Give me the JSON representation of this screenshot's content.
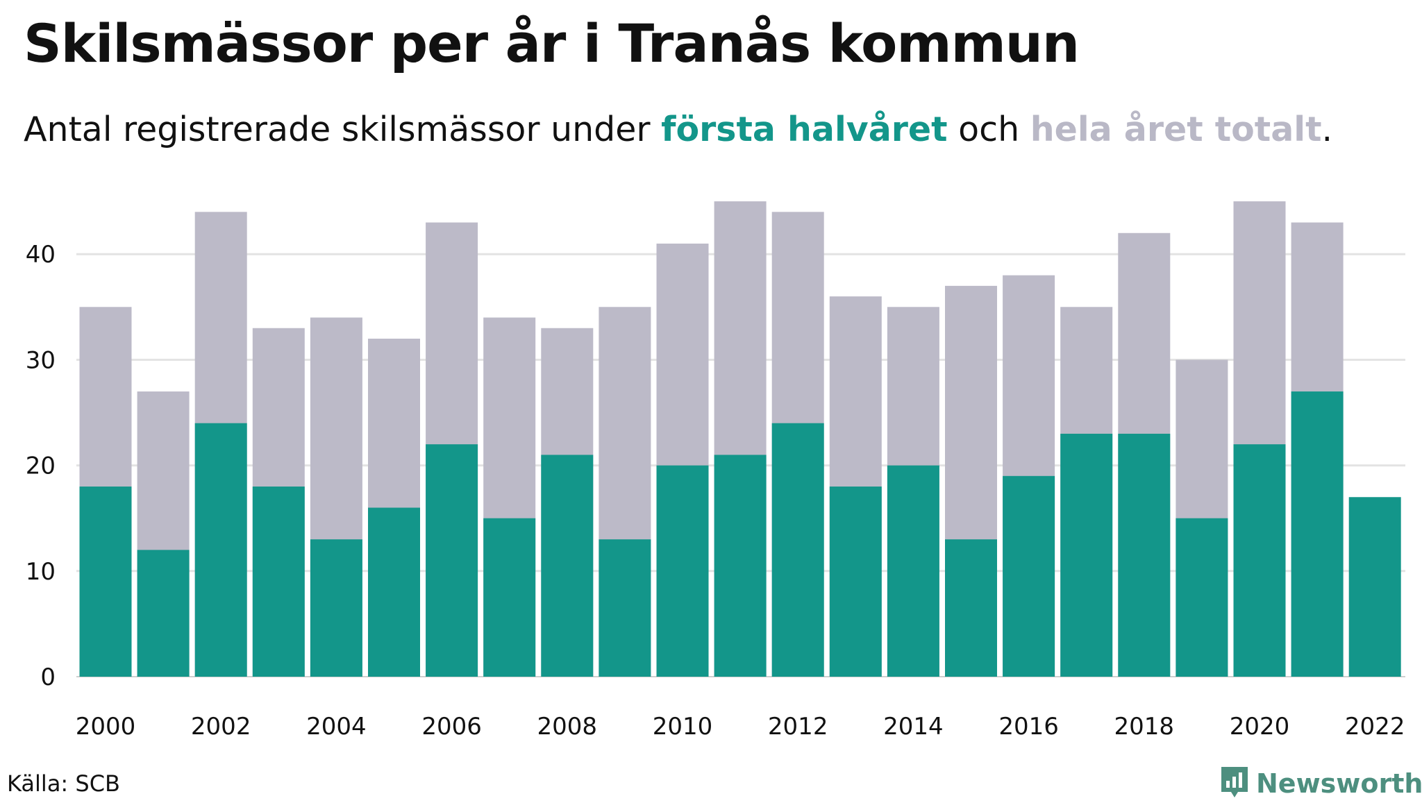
{
  "header": {
    "title": "Skilsmässor per år i Tranås kommun",
    "subtitle_prefix": "Antal registrerade skilsmässor under ",
    "subtitle_first": "första halvåret",
    "subtitle_mid": " och ",
    "subtitle_whole": "hela året totalt",
    "subtitle_end": "."
  },
  "footer": {
    "source": "Källa: SCB",
    "brand": "Newsworthy",
    "brand_icon": "newsworthy-logo-icon"
  },
  "colors": {
    "first_half": "#13968a",
    "whole_year": "#bcbac8",
    "grid": "#e3e3e3",
    "brand": "#4d8f7f"
  },
  "chart_data": {
    "type": "bar",
    "categories": [
      "2000",
      "2001",
      "2002",
      "2003",
      "2004",
      "2005",
      "2006",
      "2007",
      "2008",
      "2009",
      "2010",
      "2011",
      "2012",
      "2013",
      "2014",
      "2015",
      "2016",
      "2017",
      "2018",
      "2019",
      "2020",
      "2021",
      "2022"
    ],
    "series": [
      {
        "name": "första halvåret",
        "values": [
          18,
          12,
          24,
          18,
          13,
          16,
          22,
          15,
          21,
          13,
          20,
          21,
          24,
          18,
          20,
          13,
          19,
          23,
          23,
          15,
          22,
          27,
          17
        ]
      },
      {
        "name": "hela året totalt",
        "values": [
          35,
          27,
          44,
          33,
          34,
          32,
          43,
          34,
          33,
          35,
          41,
          45,
          44,
          36,
          35,
          37,
          38,
          35,
          42,
          30,
          45,
          43,
          null
        ]
      }
    ],
    "x_tick_labels": [
      "2000",
      "2002",
      "2004",
      "2006",
      "2008",
      "2010",
      "2012",
      "2014",
      "2016",
      "2018",
      "2020",
      "2022"
    ],
    "y_ticks": [
      0,
      10,
      20,
      30,
      40
    ],
    "ylim": [
      0,
      45
    ],
    "grid": true,
    "overlay": true
  }
}
